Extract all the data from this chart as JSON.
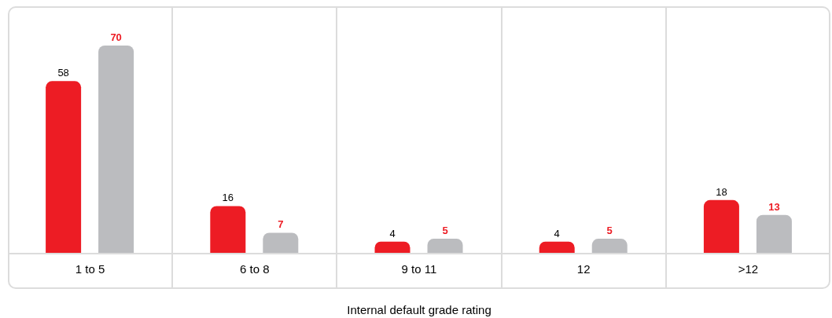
{
  "chart_data": {
    "type": "bar",
    "xlabel": "Internal default grade rating",
    "categories": [
      "1 to 5",
      "6 to 8",
      "9 to 11",
      "12",
      ">12"
    ],
    "series": [
      {
        "color": "#ed1c24",
        "values": [
          58,
          16,
          4,
          4,
          18
        ]
      },
      {
        "color": "#bbbcbf",
        "values": [
          70,
          7,
          5,
          5,
          13
        ]
      }
    ],
    "data_labels": true
  }
}
